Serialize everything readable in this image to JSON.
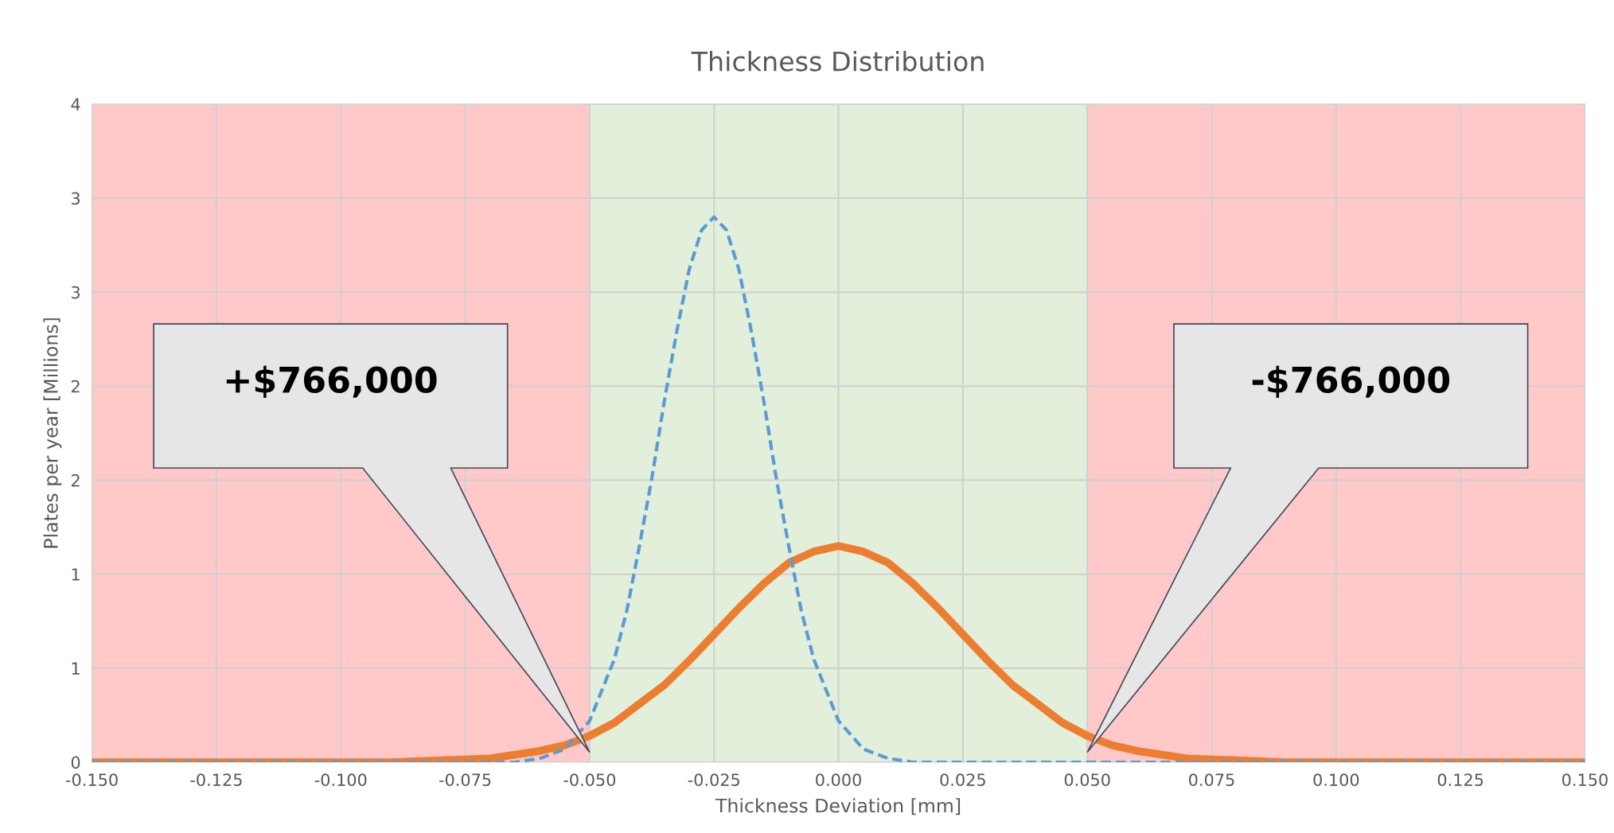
{
  "chart_data": {
    "type": "line",
    "title": "Thickness Distribution",
    "xlabel": "Thickness Deviation [mm]",
    "ylabel": "Plates per year [Millions]",
    "xlim": [
      -0.15,
      0.15
    ],
    "xticks": [
      {
        "value": -0.15,
        "label": "-0.150"
      },
      {
        "value": -0.125,
        "label": "-0.125"
      },
      {
        "value": -0.1,
        "label": "-0.100"
      },
      {
        "value": -0.075,
        "label": "-0.075"
      },
      {
        "value": -0.05,
        "label": "-0.050"
      },
      {
        "value": -0.025,
        "label": "-0.025"
      },
      {
        "value": 0,
        "label": "0.000"
      },
      {
        "value": 0.025,
        "label": "0.025"
      },
      {
        "value": 0.05,
        "label": "0.050"
      },
      {
        "value": 0.075,
        "label": "0.075"
      },
      {
        "value": 0.1,
        "label": "0.100"
      },
      {
        "value": 0.125,
        "label": "0.125"
      },
      {
        "value": 0.15,
        "label": "0.150"
      }
    ],
    "ylim": [
      0,
      3.5
    ],
    "yticks": [
      0,
      {
        "value": 0.5,
        "label": "1"
      },
      1,
      {
        "value": 1.5,
        "label": "2"
      },
      2,
      {
        "value": 2.5,
        "label": "3"
      },
      3,
      {
        "value": 3.5,
        "label": "4"
      }
    ],
    "grid": true,
    "legend": false,
    "bands": [
      {
        "axis": "x",
        "from": -0.15,
        "to": -0.05,
        "color": "#ffc9c9"
      },
      {
        "axis": "x",
        "from": -0.05,
        "to": 0.05,
        "color": "#e2efda"
      },
      {
        "axis": "x",
        "from": 0.05,
        "to": 0.15,
        "color": "#ffc9c9"
      }
    ],
    "series": [
      {
        "color": "#ed7d31",
        "line_style": "solid",
        "x": [
          -0.15,
          -0.1,
          -0.09,
          -0.08,
          -0.07,
          -0.06,
          -0.055,
          -0.05,
          -0.045,
          -0.04,
          -0.035,
          -0.03,
          -0.025,
          -0.02,
          -0.015,
          -0.01,
          -0.005,
          0,
          0.005,
          0.01,
          0.015,
          0.02,
          0.025,
          0.03,
          0.035,
          0.04,
          0.045,
          0.05,
          0.055,
          0.06,
          0.07,
          0.08,
          0.09,
          0.1,
          0.15
        ],
        "values": [
          0,
          0,
          0,
          0.01,
          0.02,
          0.06,
          0.09,
          0.14,
          0.21,
          0.31,
          0.41,
          0.54,
          0.68,
          0.82,
          0.95,
          1.06,
          1.12,
          1.15,
          1.12,
          1.06,
          0.95,
          0.82,
          0.68,
          0.54,
          0.41,
          0.31,
          0.21,
          0.14,
          0.09,
          0.06,
          0.02,
          0.01,
          0,
          0,
          0
        ]
      },
      {
        "color": "#5b9bd5",
        "line_style": "dashed",
        "x": [
          -0.15,
          -0.07,
          -0.065,
          -0.06,
          -0.055,
          -0.05,
          -0.045,
          -0.0425,
          -0.04,
          -0.0375,
          -0.035,
          -0.0325,
          -0.03,
          -0.0275,
          -0.025,
          -0.0225,
          -0.02,
          -0.0175,
          -0.015,
          -0.0125,
          -0.01,
          -0.0075,
          -0.005,
          0,
          0.005,
          0.01,
          0.015,
          0.15
        ],
        "values": [
          0,
          0,
          0,
          0.02,
          0.07,
          0.22,
          0.55,
          0.81,
          1.15,
          1.51,
          1.92,
          2.29,
          2.62,
          2.83,
          2.9,
          2.83,
          2.62,
          2.29,
          1.92,
          1.51,
          1.15,
          0.81,
          0.55,
          0.22,
          0.07,
          0.02,
          0,
          0
        ]
      }
    ],
    "annotations": [
      "+$766,000",
      "-$766,000"
    ]
  }
}
